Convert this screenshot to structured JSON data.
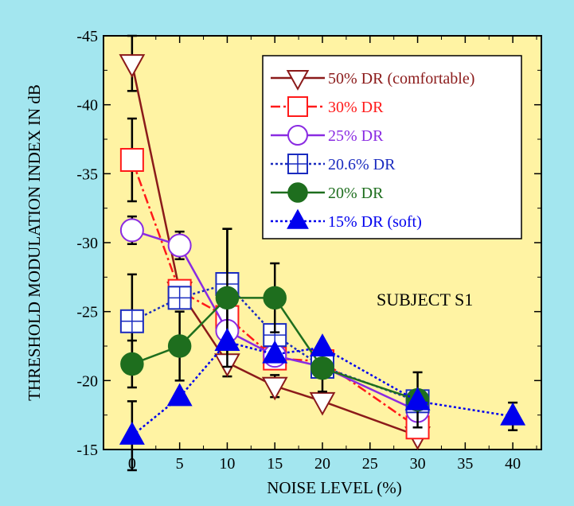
{
  "chart_data": {
    "type": "line",
    "xlabel": "NOISE LEVEL (%)",
    "ylabel": "THRESHOLD MODULATION INDEX IN dB",
    "xlim": [
      -3,
      43
    ],
    "ylim": [
      -45,
      -15
    ],
    "y_reversed": true,
    "xticks": [
      0,
      5,
      10,
      15,
      20,
      25,
      30,
      35,
      40
    ],
    "yticks": [
      -45,
      -40,
      -35,
      -30,
      -25,
      -20,
      -15
    ],
    "annotation": "SUBJECT S1",
    "legend_position": "top-right",
    "colors": {
      "background_outer": "#a3e6ef",
      "plot_area": "#fff3a3"
    },
    "series": [
      {
        "name": "50% DR (comfortable)",
        "color": "#8b1a1a",
        "marker": "triangle-down",
        "filled": false,
        "dash": "solid",
        "x": [
          0,
          5,
          10,
          15,
          20,
          30
        ],
        "y": [
          -43,
          -26.5,
          -21.3,
          -19.6,
          -18.5,
          -16
        ],
        "err": [
          2,
          0,
          1,
          0.8,
          0,
          0
        ]
      },
      {
        "name": "30% DR",
        "color": "#ff1a1a",
        "marker": "square",
        "filled": false,
        "dash": "dashdot",
        "x": [
          0,
          5,
          10,
          15,
          20,
          30
        ],
        "y": [
          -36,
          -26.5,
          -24.6,
          -21.6,
          -21.4,
          -16.6
        ],
        "err": [
          3,
          0,
          0,
          0,
          0,
          0
        ]
      },
      {
        "name": "25% DR",
        "color": "#8a2be2",
        "marker": "circle",
        "filled": false,
        "dash": "solid",
        "x": [
          0,
          5,
          10,
          15,
          20,
          30
        ],
        "y": [
          -30.9,
          -29.8,
          -23.6,
          -21.8,
          -21,
          -17.8
        ],
        "err": [
          1,
          1,
          0,
          0,
          0,
          0
        ]
      },
      {
        "name": "20.6% DR",
        "color": "#1a2bbf",
        "marker": "square-plus",
        "filled": false,
        "dash": "dotted",
        "x": [
          0,
          5,
          10,
          15,
          20,
          30
        ],
        "y": [
          -24.3,
          -26,
          -27,
          -23.3,
          -21,
          -18.5
        ],
        "err": [
          3.4,
          0,
          4,
          0,
          0,
          0
        ]
      },
      {
        "name": "20% DR",
        "color": "#1e6e1e",
        "marker": "circle",
        "filled": true,
        "dash": "solid",
        "x": [
          0,
          5,
          10,
          15,
          20,
          30
        ],
        "y": [
          -21.2,
          -22.5,
          -26,
          -26,
          -20.9,
          -18.6
        ],
        "err": [
          1.7,
          2.5,
          5,
          2.5,
          1.7,
          2
        ]
      },
      {
        "name": "15% DR (soft)",
        "color": "#0000ee",
        "marker": "triangle-up",
        "filled": true,
        "dash": "dotted",
        "x": [
          0,
          5,
          10,
          15,
          20,
          30,
          40
        ],
        "y": [
          -16,
          -18.8,
          -22.8,
          -21.9,
          -22.4,
          -18.5,
          -17.4
        ],
        "err": [
          2.5,
          0,
          0,
          0,
          0,
          0,
          1
        ]
      }
    ]
  }
}
